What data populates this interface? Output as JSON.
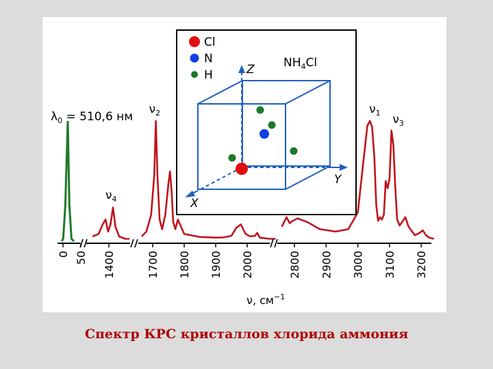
{
  "caption": "Спектр КРС кристаллов хлорида аммония",
  "colors": {
    "spectrum": "#c0141e",
    "laser_line": "#1e7a2a",
    "axis": "#000000",
    "cube": "#1f5fbf",
    "cl_atom": "#e01010",
    "n_atom": "#1040e0",
    "h_atom": "#1a7a2a"
  },
  "chart_data": {
    "type": "line",
    "xlabel": "ν, см",
    "xlabel_sup": "−1",
    "axis_segments": [
      {
        "id": "a",
        "range": [
          0,
          50
        ],
        "ticks": [
          "0",
          "50"
        ]
      },
      {
        "id": "b",
        "range": [
          1350,
          1450
        ],
        "ticks": [
          "1400"
        ]
      },
      {
        "id": "c",
        "range": [
          1650,
          2100
        ],
        "ticks": [
          "1700",
          "1800",
          "1900",
          "2000"
        ]
      },
      {
        "id": "d",
        "range": [
          2750,
          3250
        ],
        "ticks": [
          "2800",
          "2900",
          "3000",
          "3100",
          "3200"
        ]
      }
    ],
    "laser_label": "λ",
    "laser_label_sub": "0",
    "laser_label_value": "= 510,6 нм",
    "laser_line": {
      "x": [
        0,
        5,
        12,
        20,
        25,
        32,
        40
      ],
      "y": [
        0,
        2,
        30,
        100,
        30,
        2,
        0
      ]
    },
    "peak_labels": [
      {
        "base": "ν",
        "sub": "4",
        "x": 1405
      },
      {
        "base": "ν",
        "sub": "2",
        "x": 1710
      },
      {
        "base": "ν",
        "sub": "1",
        "x": 3040
      },
      {
        "base": "ν",
        "sub": "3",
        "x": 3140
      }
    ],
    "series": [
      {
        "segment": "b",
        "x": [
          1360,
          1375,
          1385,
          1392,
          1398,
          1404,
          1410,
          1416,
          1425,
          1440,
          1450
        ],
        "y": [
          4,
          6,
          14,
          18,
          8,
          14,
          28,
          12,
          4,
          2,
          2
        ]
      },
      {
        "segment": "c",
        "x": [
          1665,
          1680,
          1695,
          1705,
          1710,
          1715,
          1722,
          1730,
          1740,
          1750,
          1755,
          1760,
          1765,
          1772,
          1780,
          1800,
          1850,
          1900,
          1925,
          1950,
          1965,
          1980,
          1995,
          2010,
          2025,
          2032,
          2040,
          2055,
          2070,
          2090
        ],
        "y": [
          4,
          8,
          22,
          55,
          100,
          55,
          18,
          10,
          22,
          48,
          58,
          42,
          16,
          10,
          18,
          6,
          3.5,
          3,
          3.2,
          4.5,
          11,
          14,
          6,
          4,
          4.5,
          7,
          3,
          2.5,
          2,
          2
        ]
      },
      {
        "segment": "d",
        "x": [
          2760,
          2775,
          2785,
          2795,
          2810,
          2840,
          2880,
          2930,
          2970,
          3000,
          3015,
          3030,
          3038,
          3045,
          3052,
          3058,
          3064,
          3070,
          3076,
          3082,
          3088,
          3094,
          3100,
          3106,
          3112,
          3118,
          3124,
          3132,
          3140,
          3150,
          3160,
          3180,
          3195,
          3205,
          3215,
          3225,
          3240
        ],
        "y": [
          12,
          20,
          15,
          17,
          19,
          16,
          10,
          8,
          10,
          24,
          60,
          96,
          100,
          95,
          70,
          30,
          17,
          20,
          18,
          22,
          50,
          44,
          52,
          92,
          80,
          46,
          18,
          13,
          16,
          20,
          12,
          5,
          7,
          9,
          5,
          3,
          2
        ]
      }
    ]
  },
  "inset": {
    "title": "NH",
    "title_sub": "4",
    "title_tail": "Cl",
    "legend": [
      {
        "symbol": "Cl",
        "color_key": "cl_atom"
      },
      {
        "symbol": "N",
        "color_key": "n_atom"
      },
      {
        "symbol": "H",
        "color_key": "h_atom"
      }
    ],
    "axis_x": "X",
    "axis_y": "Y",
    "axis_z": "Z"
  }
}
